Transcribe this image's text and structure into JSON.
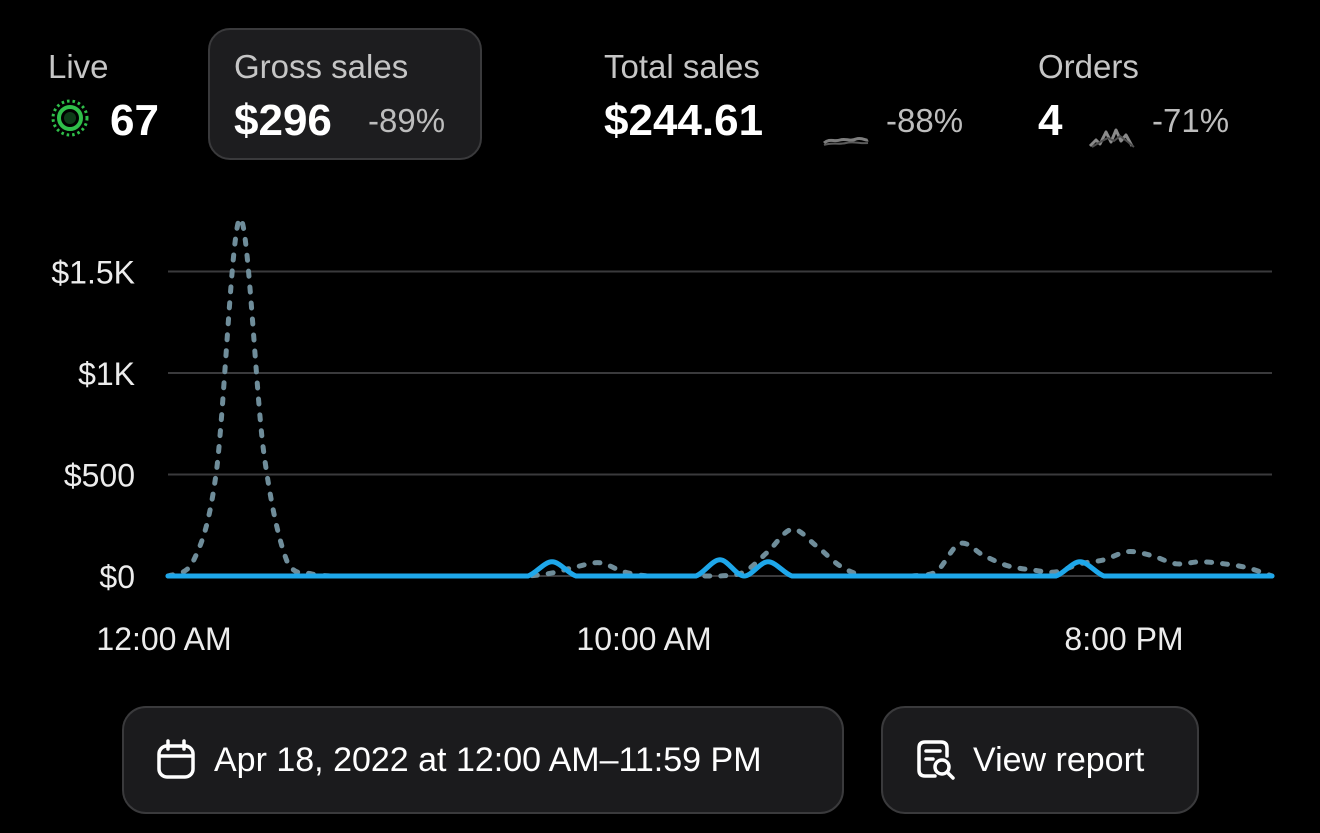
{
  "metrics": {
    "live": {
      "label": "Live",
      "value": "67",
      "icon": "live-pulse-icon",
      "color": "#2fbf4a"
    },
    "gross_sales": {
      "label": "Gross sales",
      "value": "$296",
      "change": "-89%",
      "selected": true
    },
    "total_sales": {
      "label": "Total sales",
      "value": "$244.61",
      "change": "-88%",
      "icon": "sparkline-icon"
    },
    "orders": {
      "label": "Orders",
      "value": "4",
      "change": "-71%",
      "icon": "sparkline-icon"
    }
  },
  "chart_data": {
    "type": "line",
    "x_ticks": [
      "12:00 AM",
      "10:00 AM",
      "8:00 PM"
    ],
    "y_ticks": [
      "$0",
      "$500",
      "$1K",
      "$1.5K"
    ],
    "y_tick_values": [
      0,
      500,
      1000,
      1500
    ],
    "ylim": [
      0,
      1800
    ],
    "xlim": [
      0,
      23
    ],
    "grid": true,
    "series": [
      {
        "style": "dashed",
        "color": "#6f8d9a",
        "x": [
          0,
          0.5,
          1,
          1.5,
          2,
          2.5,
          3,
          3.5,
          4,
          4.5,
          5,
          5.5,
          6,
          6.5,
          7,
          7.5,
          8,
          8.5,
          9,
          9.5,
          10,
          10.5,
          11,
          11.5,
          12,
          12.5,
          13,
          13.5,
          14,
          14.5,
          15,
          15.5,
          16,
          16.5,
          17,
          17.5,
          18,
          18.5,
          19,
          19.5,
          20,
          20.5,
          21,
          21.5,
          22,
          22.5,
          23
        ],
        "values": [
          0,
          60,
          500,
          1760,
          600,
          60,
          10,
          0,
          0,
          0,
          0,
          0,
          0,
          0,
          0,
          0,
          15,
          45,
          65,
          20,
          0,
          0,
          0,
          0,
          20,
          120,
          230,
          150,
          50,
          0,
          0,
          0,
          20,
          160,
          100,
          50,
          30,
          20,
          60,
          80,
          120,
          100,
          60,
          70,
          60,
          40,
          0
        ]
      },
      {
        "style": "solid",
        "color": "#1ea7ea",
        "x": [
          0,
          0.5,
          1,
          1.5,
          2,
          2.5,
          3,
          3.5,
          4,
          4.5,
          5,
          5.5,
          6,
          6.5,
          7,
          7.5,
          8,
          8.5,
          9,
          9.5,
          10,
          10.5,
          11,
          11.5,
          12,
          12.5,
          13,
          13.5,
          14,
          14.5,
          15,
          15.5,
          16,
          16.5,
          17,
          17.5,
          18,
          18.5,
          19,
          19.5,
          20,
          20.5,
          21,
          21.5,
          22,
          22.5,
          23
        ],
        "values": [
          0,
          0,
          0,
          0,
          0,
          0,
          0,
          0,
          0,
          0,
          0,
          0,
          0,
          0,
          0,
          0,
          70,
          0,
          0,
          0,
          0,
          0,
          0,
          80,
          0,
          70,
          0,
          0,
          0,
          0,
          0,
          0,
          0,
          0,
          0,
          0,
          0,
          0,
          70,
          0,
          0,
          0,
          0,
          0,
          0,
          0,
          0
        ]
      }
    ]
  },
  "actions": {
    "date_range": "Apr 18, 2022 at 12:00 AM–11:59 PM",
    "date_icon": "calendar-icon",
    "view_report": "View report",
    "report_icon": "report-search-icon"
  }
}
